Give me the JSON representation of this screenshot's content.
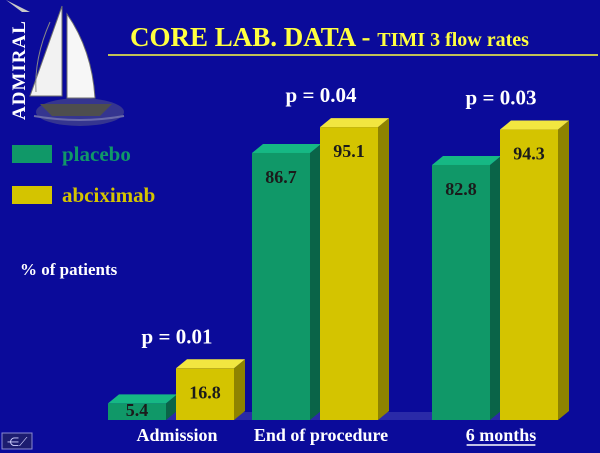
{
  "logo": {
    "text": "ADMIRAL"
  },
  "title": {
    "main": "CORE LAB.  DATA - ",
    "sub": "TIMI 3 flow rates"
  },
  "colors": {
    "background": "#0b0b9a",
    "placebo": "#109868",
    "abciximab": "#d4c400",
    "title": "#ffff40"
  },
  "chart_data": {
    "type": "bar",
    "ylabel": "% of patients",
    "categories": [
      "Admission",
      "End of procedure",
      "6 months"
    ],
    "series": [
      {
        "name": "placebo",
        "values": [
          5.4,
          86.7,
          82.8
        ]
      },
      {
        "name": "abciximab",
        "values": [
          16.8,
          95.1,
          94.3
        ]
      }
    ],
    "data_labels": [
      [
        "5.4",
        "16.8"
      ],
      [
        "86.7",
        "95.1"
      ],
      [
        "82.8",
        "94.3"
      ]
    ],
    "p_values": [
      "p = 0.01",
      "p = 0.04",
      "p = 0.03"
    ],
    "ylim": [
      0,
      100
    ],
    "grid": false,
    "legend_position": "top-left",
    "style": "3d-bars"
  }
}
